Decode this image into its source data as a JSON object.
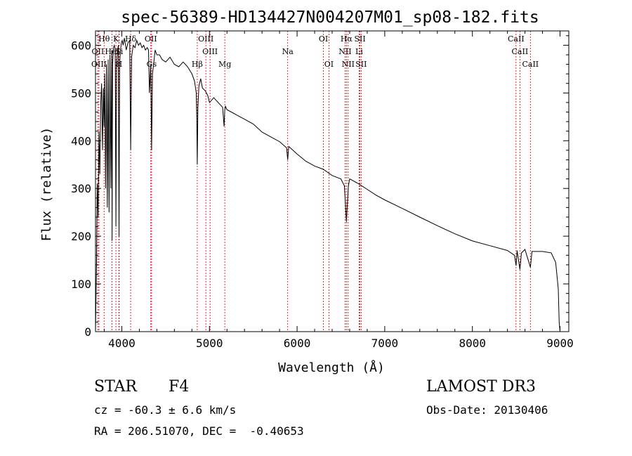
{
  "chart_data": {
    "type": "line",
    "title": "spec-56389-HD134427N004207M01_sp08-182.fits",
    "xlabel": "Wavelength (Å)",
    "ylabel": "Flux (relative)",
    "xlim": [
      3700,
      9100
    ],
    "ylim": [
      0,
      630
    ],
    "xticks": [
      4000,
      5000,
      6000,
      7000,
      8000,
      9000
    ],
    "yticks": [
      0,
      100,
      200,
      300,
      400,
      500,
      600
    ],
    "grid": false,
    "series": [
      {
        "name": "spectrum",
        "x": [
          3700,
          3705,
          3712,
          3720,
          3730,
          3740,
          3750,
          3760,
          3770,
          3780,
          3790,
          3798,
          3805,
          3815,
          3825,
          3835,
          3845,
          3855,
          3865,
          3875,
          3885,
          3889,
          3895,
          3905,
          3915,
          3925,
          3933,
          3940,
          3950,
          3960,
          3968,
          3975,
          3985,
          3995,
          4005,
          4015,
          4030,
          4050,
          4070,
          4090,
          4101,
          4112,
          4130,
          4150,
          4170,
          4190,
          4210,
          4230,
          4250,
          4270,
          4290,
          4305,
          4315,
          4330,
          4340,
          4350,
          4360,
          4380,
          4400,
          4430,
          4460,
          4500,
          4550,
          4600,
          4650,
          4700,
          4750,
          4800,
          4830,
          4850,
          4855,
          4861,
          4868,
          4880,
          4900,
          4920,
          4950,
          4980,
          5000,
          5050,
          5100,
          5150,
          5167,
          5175,
          5183,
          5200,
          5250,
          5300,
          5400,
          5500,
          5600,
          5700,
          5800,
          5880,
          5893,
          5905,
          6000,
          6100,
          6200,
          6300,
          6400,
          6500,
          6540,
          6563,
          6585,
          6600,
          6700,
          6800,
          6900,
          7000,
          7200,
          7400,
          7600,
          7800,
          8000,
          8200,
          8400,
          8480,
          8498,
          8510,
          8542,
          8560,
          8600,
          8662,
          8680,
          8800,
          8900,
          8950,
          8980,
          8990,
          9000
        ],
        "y": [
          0,
          60,
          150,
          310,
          240,
          420,
          330,
          480,
          520,
          380,
          510,
          430,
          540,
          300,
          560,
          260,
          570,
          250,
          580,
          300,
          590,
          190,
          560,
          595,
          600,
          590,
          220,
          560,
          585,
          600,
          200,
          560,
          590,
          605,
          610,
          600,
          615,
          590,
          605,
          610,
          380,
          575,
          600,
          595,
          610,
          600,
          605,
          595,
          600,
          590,
          595,
          590,
          500,
          560,
          380,
          540,
          555,
          590,
          580,
          580,
          570,
          565,
          575,
          560,
          555,
          565,
          555,
          540,
          525,
          500,
          450,
          350,
          470,
          515,
          530,
          510,
          505,
          495,
          480,
          490,
          480,
          470,
          430,
          465,
          472,
          465,
          460,
          455,
          445,
          435,
          418,
          408,
          398,
          385,
          360,
          388,
          372,
          357,
          347,
          340,
          327,
          320,
          305,
          230,
          305,
          320,
          310,
          298,
          286,
          276,
          258,
          240,
          222,
          205,
          190,
          180,
          170,
          160,
          138,
          170,
          130,
          165,
          172,
          135,
          168,
          168,
          165,
          145,
          90,
          20,
          0
        ]
      }
    ],
    "spectral_lines": [
      {
        "label": "Hθ",
        "wavelength": 3798,
        "row": 0
      },
      {
        "label": "K",
        "wavelength": 3933,
        "row": 0
      },
      {
        "label": "Hδ",
        "wavelength": 4101,
        "row": 0
      },
      {
        "label": "OII",
        "wavelength": 4331,
        "row": 0
      },
      {
        "label": "OIII",
        "wavelength": 4959,
        "row": 0
      },
      {
        "label": "OI",
        "wavelength": 6300,
        "row": 0
      },
      {
        "label": "Hα",
        "wavelength": 6563,
        "row": 0
      },
      {
        "label": "SII",
        "wavelength": 6717,
        "row": 0
      },
      {
        "label": "CaII",
        "wavelength": 8498,
        "row": 0
      },
      {
        "label": "OII",
        "wavelength": 3727,
        "row": 1
      },
      {
        "label": "HeI",
        "wavelength": 3889,
        "row": 1
      },
      {
        "label": "Si",
        "wavelength": 3970,
        "row": 1
      },
      {
        "label": "OIII",
        "wavelength": 5007,
        "row": 1
      },
      {
        "label": "Na",
        "wavelength": 5893,
        "row": 1
      },
      {
        "label": "NII",
        "wavelength": 6548,
        "row": 1
      },
      {
        "label": "Li",
        "wavelength": 6708,
        "row": 1
      },
      {
        "label": "CaII",
        "wavelength": 8542,
        "row": 1
      },
      {
        "label": "OIII",
        "wavelength": 3740,
        "row": 2
      },
      {
        "label": "H",
        "wavelength": 3968,
        "row": 2
      },
      {
        "label": "Gs",
        "wavelength": 4340,
        "row": 2
      },
      {
        "label": "Hβ",
        "wavelength": 4861,
        "row": 2
      },
      {
        "label": "Mg",
        "wavelength": 5175,
        "row": 2
      },
      {
        "label": "OI",
        "wavelength": 6363,
        "row": 2
      },
      {
        "label": "NII",
        "wavelength": 6583,
        "row": 2
      },
      {
        "label": "SII",
        "wavelength": 6731,
        "row": 2
      },
      {
        "label": "CaII",
        "wavelength": 8662,
        "row": 2
      }
    ]
  },
  "info": {
    "object_class": "STAR",
    "subclass": "F4",
    "survey": "LAMOST DR3",
    "cz_line": "cz = -60.3 ± 6.6 km/s",
    "obs_date_line": "Obs-Date: 20130406",
    "coords_line": "RA = 206.51070, DEC =  -0.40653"
  },
  "colors": {
    "spectrum": "#000000",
    "line_marker": "#cc0000",
    "axis": "#000000"
  }
}
